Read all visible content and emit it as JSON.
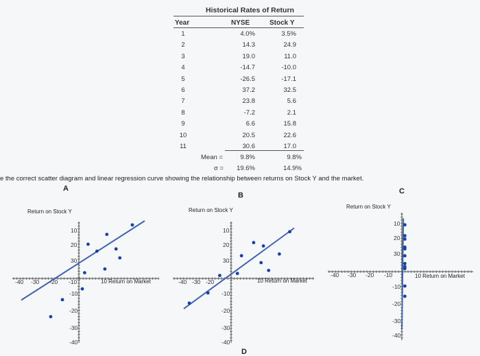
{
  "table": {
    "title": "Historical Rates of Return",
    "col_year": "Year",
    "col_nyse": "NYSE",
    "col_stock": "Stock Y",
    "rows": [
      {
        "year": "1",
        "nyse": "4.0%",
        "stock": "3.5%"
      },
      {
        "year": "2",
        "nyse": "14.3",
        "stock": "24.9"
      },
      {
        "year": "3",
        "nyse": "19.0",
        "stock": "11.0"
      },
      {
        "year": "4",
        "nyse": "-14.7",
        "stock": "-10.0"
      },
      {
        "year": "5",
        "nyse": "-26.5",
        "stock": "-17.1"
      },
      {
        "year": "6",
        "nyse": "37.2",
        "stock": "32.5"
      },
      {
        "year": "7",
        "nyse": "23.8",
        "stock": "5.6"
      },
      {
        "year": "8",
        "nyse": "-7.2",
        "stock": "2.1"
      },
      {
        "year": "9",
        "nyse": "6.6",
        "stock": "15.8"
      },
      {
        "year": "10",
        "nyse": "20.5",
        "stock": "22.6"
      },
      {
        "year": "11",
        "nyse": "30.6",
        "stock": "17.0"
      }
    ],
    "mean_label": "Mean =",
    "mean_nyse": "9.8%",
    "mean_stock": "9.8%",
    "sigma_label": "σ =",
    "sigma_nyse": "19.6%",
    "sigma_stock": "14.9%"
  },
  "instruction": "e the correct scatter diagram and linear regression curve showing the relationship between returns on Stock Y and the market.",
  "chart_data": [
    {
      "type": "scatter",
      "option_label": "A",
      "ylabel": "Return on Stock Y",
      "xlabel": "10 Return on Market",
      "x_ticks": [
        "-40",
        "-30",
        "-20",
        "-10"
      ],
      "y_ticks": [
        "30",
        "20",
        "10",
        "-10",
        "-20",
        "-30",
        "-40"
      ],
      "xlim": [
        -40,
        40
      ],
      "ylim": [
        -40,
        40
      ],
      "points": [
        [
          3.5,
          4.0
        ],
        [
          24.9,
          14.3
        ],
        [
          11.0,
          19.0
        ],
        [
          -10.0,
          -14.7
        ],
        [
          -17.1,
          -26.5
        ],
        [
          32.5,
          37.2
        ],
        [
          5.6,
          23.8
        ],
        [
          2.1,
          -7.2
        ],
        [
          15.8,
          6.6
        ],
        [
          22.6,
          20.5
        ],
        [
          17.0,
          30.6
        ]
      ],
      "line": [
        [
          -35,
          -15
        ],
        [
          40,
          40
        ]
      ]
    },
    {
      "type": "scatter",
      "option_label": "B",
      "ylabel": "Return on Stock Y",
      "xlabel": "10 Return on Market",
      "x_ticks": [
        "-40",
        "-30",
        "-20"
      ],
      "y_ticks": [
        "30",
        "20",
        "10",
        "-10",
        "-20",
        "-30",
        "-40"
      ],
      "xlim": [
        -40,
        40
      ],
      "ylim": [
        -40,
        40
      ],
      "points": [
        [
          4.0,
          3.5
        ],
        [
          14.3,
          24.9
        ],
        [
          19.0,
          11.0
        ],
        [
          -14.7,
          -10.0
        ],
        [
          -26.5,
          -17.1
        ],
        [
          37.2,
          32.5
        ],
        [
          23.8,
          5.6
        ],
        [
          -7.2,
          2.1
        ],
        [
          6.6,
          15.8
        ],
        [
          20.5,
          22.6
        ],
        [
          30.6,
          17.0
        ]
      ],
      "line": [
        [
          -30,
          -21
        ],
        [
          40,
          35
        ]
      ]
    },
    {
      "type": "scatter",
      "option_label": "C",
      "ylabel": "Return on Stock Y",
      "xlabel": "10 Return on Market",
      "x_ticks": [
        "-40",
        "-30",
        "-20",
        "-10"
      ],
      "y_ticks": [
        "30",
        "20",
        "10",
        "-10",
        "-20",
        "-30",
        "-40"
      ],
      "xlim": [
        -40,
        40
      ],
      "ylim": [
        -40,
        40
      ],
      "points": [
        [
          2,
          3.5
        ],
        [
          2,
          24.9
        ],
        [
          2,
          11.0
        ],
        [
          2,
          -10.0
        ],
        [
          2,
          -17.1
        ],
        [
          2,
          32.5
        ],
        [
          2,
          5.6
        ],
        [
          2,
          2.1
        ],
        [
          2,
          15.8
        ],
        [
          2,
          22.6
        ],
        [
          2,
          17.0
        ]
      ],
      "line": [
        [
          0,
          -40
        ],
        [
          1,
          37
        ]
      ]
    }
  ],
  "next_option_label": "D",
  "colors": {
    "point": "#1a3fa8",
    "line": "#3c64b4",
    "axis": "#444"
  }
}
